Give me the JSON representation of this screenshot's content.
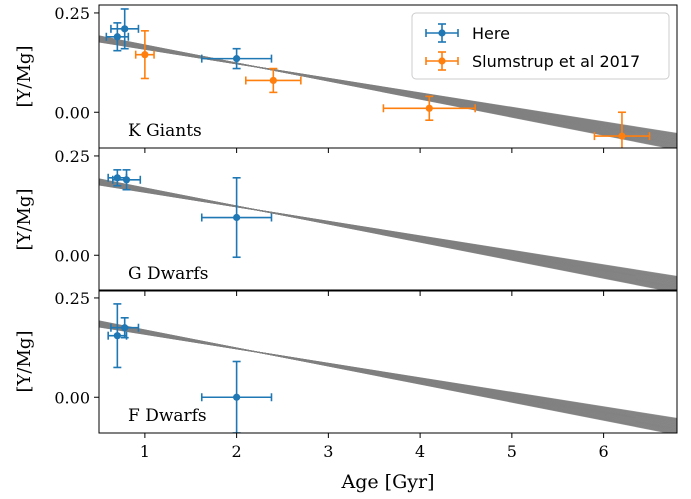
{
  "chart_data": {
    "type": "scatter",
    "xlabel": "Age [Gyr]",
    "xlim": [
      0.5,
      6.8
    ],
    "x_ticks": [
      "1",
      "2",
      "3",
      "4",
      "5",
      "6"
    ],
    "x_tick_values": [
      1,
      2,
      3,
      4,
      5,
      6
    ],
    "legend": {
      "placement": "top-right",
      "entries": [
        {
          "label": "Here",
          "color": "#1f77b4"
        },
        {
          "label": "Slumstrup et al 2017",
          "color": "#ff7f0e"
        }
      ]
    },
    "band": {
      "color": "#808080",
      "intercept": [
        0.195,
        0.215
      ],
      "slope": [
        -0.0365,
        -0.0455
      ]
    },
    "panels": [
      {
        "label": "K Giants",
        "ylabel": "[Y/Mg]",
        "ylim": [
          -0.09,
          0.27
        ],
        "y_ticks": [
          "0.25",
          "0.00"
        ],
        "y_tick_values": [
          0.25,
          0.0
        ],
        "series": [
          {
            "name": "Here",
            "color": "#1f77b4",
            "points": [
              {
                "x": 0.7,
                "y": 0.19,
                "xerr": 0.12,
                "yerr": 0.035
              },
              {
                "x": 0.78,
                "y": 0.21,
                "xerr": 0.15,
                "yerr": 0.05
              },
              {
                "x": 2.0,
                "y": 0.135,
                "xerr": 0.38,
                "yerr": 0.025
              }
            ]
          },
          {
            "name": "Slumstrup et al 2017",
            "color": "#ff7f0e",
            "points": [
              {
                "x": 1.0,
                "y": 0.145,
                "xerr": 0.1,
                "yerr": 0.06
              },
              {
                "x": 2.4,
                "y": 0.08,
                "xerr": 0.3,
                "yerr": 0.03
              },
              {
                "x": 4.1,
                "y": 0.01,
                "xerr": 0.5,
                "yerr": 0.03
              },
              {
                "x": 6.2,
                "y": -0.06,
                "xerr": 0.3,
                "yerr": 0.06
              }
            ]
          }
        ]
      },
      {
        "label": "G Dwarfs",
        "ylabel": "[Y/Mg]",
        "ylim": [
          -0.09,
          0.27
        ],
        "y_ticks": [
          "0.25",
          "0.00"
        ],
        "y_tick_values": [
          0.25,
          0.0
        ],
        "series": [
          {
            "name": "Here",
            "color": "#1f77b4",
            "points": [
              {
                "x": 0.7,
                "y": 0.195,
                "xerr": 0.1,
                "yerr": 0.02
              },
              {
                "x": 0.8,
                "y": 0.19,
                "xerr": 0.15,
                "yerr": 0.025
              },
              {
                "x": 2.0,
                "y": 0.095,
                "xerr": 0.38,
                "yerr": 0.1
              }
            ]
          }
        ]
      },
      {
        "label": "F Dwarfs",
        "ylabel": "[Y/Mg]",
        "ylim": [
          -0.09,
          0.27
        ],
        "y_ticks": [
          "0.25",
          "0.00"
        ],
        "y_tick_values": [
          0.25,
          0.0
        ],
        "series": [
          {
            "name": "Here",
            "color": "#1f77b4",
            "points": [
              {
                "x": 0.7,
                "y": 0.155,
                "xerr": 0.1,
                "yerr": 0.08
              },
              {
                "x": 0.78,
                "y": 0.175,
                "xerr": 0.15,
                "yerr": 0.025
              },
              {
                "x": 2.0,
                "y": 0.0,
                "xerr": 0.38,
                "yerr": 0.09
              }
            ]
          }
        ]
      }
    ]
  }
}
